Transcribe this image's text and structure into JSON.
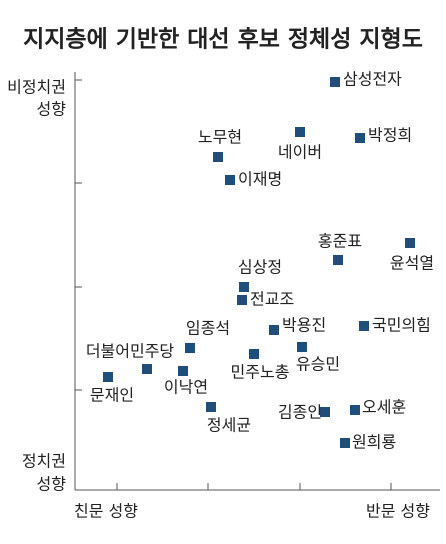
{
  "title": "지지층에 기반한 대선 후보 정체성 지형도",
  "axes": {
    "top_label": [
      "비정치권",
      "성향"
    ],
    "bottom_label": [
      "정치권",
      "성향"
    ],
    "left_label": "친문 성향",
    "right_label": "반문 성향"
  },
  "nodes": [
    {
      "label": "삼성전자"
    },
    {
      "label": "네이버"
    },
    {
      "label": "박정희"
    },
    {
      "label": "노무현"
    },
    {
      "label": "이재명"
    },
    {
      "label": "윤석열"
    },
    {
      "label": "홍준표"
    },
    {
      "label": "심상정"
    },
    {
      "label": "전교조"
    },
    {
      "label": "임종석"
    },
    {
      "label": "박용진"
    },
    {
      "label": "국민의힘"
    },
    {
      "label": "더불어민주당"
    },
    {
      "label": "유승민"
    },
    {
      "label": "민주노총"
    },
    {
      "label": "이낙연"
    },
    {
      "label": "문재인"
    },
    {
      "label": "정세균"
    },
    {
      "label": "김종인"
    },
    {
      "label": "오세훈"
    },
    {
      "label": "원희룡"
    }
  ]
}
